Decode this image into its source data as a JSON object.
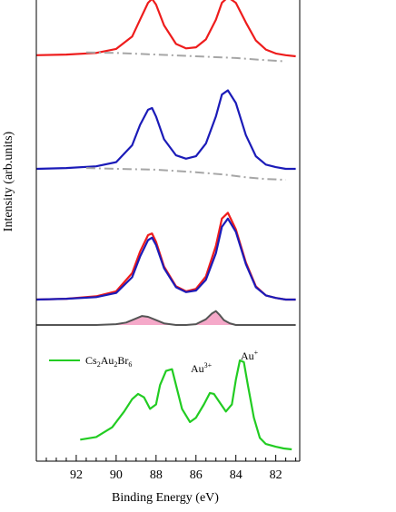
{
  "chart_data": {
    "type": "line",
    "xlabel": "Binding Energy (eV)",
    "ylabel": "Intensity (arb.units)",
    "xlim": [
      94,
      80.8
    ],
    "x_reversed": true,
    "x_ticks": [
      "92",
      "90",
      "88",
      "86",
      "84",
      "82"
    ],
    "grid": false,
    "legend": [
      {
        "label": "Cs",
        "sub": "2",
        "label2": "Au",
        "sub2": "2",
        "label3": "Br",
        "sub3": "6",
        "color": "#22cc22",
        "position": "upper-left of bottom panel"
      }
    ],
    "annotations": [
      {
        "text": "Au",
        "sup": "3+",
        "x": 85.2
      },
      {
        "text": "Au",
        "sup": "+",
        "x": 83.2
      }
    ],
    "colors": {
      "red": "#ee1c1c",
      "blue": "#1b1bb8",
      "gray_dash": "#a6a6a6",
      "diff": "#555555",
      "diff_fill": "#f5a9c9",
      "green": "#22cc22"
    },
    "series": [
      {
        "panel": "top",
        "color": "#ee1c1c",
        "x": [
          94,
          92.5,
          91,
          90,
          89.2,
          88.8,
          88.4,
          88.2,
          88.0,
          87.6,
          87.0,
          86.5,
          86.0,
          85.5,
          85.0,
          84.7,
          84.4,
          84.0,
          83.5,
          83.0,
          82.5,
          82.0,
          81.5,
          81.0
        ],
        "y": [
          0.02,
          0.03,
          0.06,
          0.13,
          0.35,
          0.65,
          0.95,
          1.02,
          0.92,
          0.55,
          0.22,
          0.14,
          0.16,
          0.3,
          0.65,
          0.95,
          1.05,
          0.95,
          0.6,
          0.28,
          0.12,
          0.05,
          0.02,
          0.0
        ]
      },
      {
        "panel": "top",
        "style": "dash-dot",
        "color": "#a6a6a6",
        "x": [
          91.5,
          90,
          88,
          86,
          84,
          82.5,
          81.5
        ],
        "y": [
          0.07,
          0.06,
          0.03,
          0.0,
          -0.03,
          -0.07,
          -0.09
        ]
      },
      {
        "panel": "middle",
        "color": "#1b1bb8",
        "x": [
          94,
          92.5,
          91,
          90,
          89.2,
          88.8,
          88.4,
          88.2,
          88.0,
          87.6,
          87.0,
          86.5,
          86.0,
          85.5,
          85.0,
          84.7,
          84.4,
          84.0,
          83.5,
          83.0,
          82.5,
          82.0,
          81.5,
          81.0
        ],
        "y": [
          0.0,
          0.01,
          0.03,
          0.08,
          0.28,
          0.52,
          0.7,
          0.72,
          0.62,
          0.35,
          0.16,
          0.12,
          0.15,
          0.3,
          0.62,
          0.88,
          0.93,
          0.78,
          0.4,
          0.15,
          0.05,
          0.02,
          0.0,
          0.0
        ]
      },
      {
        "panel": "middle",
        "style": "dash-dot",
        "color": "#a6a6a6",
        "x": [
          91.5,
          90,
          88,
          86,
          84.5,
          83.5,
          82.5,
          81.5
        ],
        "y": [
          0.01,
          0.0,
          -0.01,
          -0.04,
          -0.07,
          -0.1,
          -0.12,
          -0.13
        ]
      },
      {
        "panel": "lower",
        "name": "red",
        "color": "#ee1c1c",
        "x": [
          94,
          92.5,
          91,
          90,
          89.2,
          88.8,
          88.4,
          88.2,
          88.0,
          87.6,
          87.0,
          86.5,
          86.0,
          85.5,
          85.0,
          84.7,
          84.4,
          84.0,
          83.5,
          83.0,
          82.5,
          82.0,
          81.5,
          81.0
        ],
        "y": [
          0.0,
          0.01,
          0.04,
          0.1,
          0.32,
          0.58,
          0.78,
          0.8,
          0.7,
          0.4,
          0.16,
          0.1,
          0.13,
          0.28,
          0.65,
          0.98,
          1.05,
          0.85,
          0.45,
          0.16,
          0.05,
          0.02,
          0.0,
          0.0
        ]
      },
      {
        "panel": "lower",
        "name": "blue",
        "color": "#1b1bb8",
        "x": [
          94,
          92.5,
          91,
          90,
          89.2,
          88.8,
          88.4,
          88.2,
          88.0,
          87.6,
          87.0,
          86.5,
          86.0,
          85.5,
          85.0,
          84.7,
          84.4,
          84.0,
          83.5,
          83.0,
          82.5,
          82.0,
          81.5,
          81.0
        ],
        "y": [
          0.0,
          0.01,
          0.03,
          0.08,
          0.27,
          0.52,
          0.72,
          0.75,
          0.66,
          0.38,
          0.15,
          0.09,
          0.11,
          0.24,
          0.56,
          0.88,
          0.98,
          0.82,
          0.43,
          0.15,
          0.05,
          0.02,
          0.0,
          0.0
        ]
      },
      {
        "panel": "difference",
        "color": "#555555",
        "x": [
          94,
          91,
          90,
          89.5,
          89.0,
          88.7,
          88.4,
          88.0,
          87.6,
          87.0,
          86.5,
          86.0,
          85.5,
          85.2,
          85.0,
          84.8,
          84.6,
          84.3,
          84.0,
          83.5,
          83.0,
          82,
          81
        ],
        "y": [
          0.0,
          0.0,
          0.01,
          0.03,
          0.08,
          0.11,
          0.1,
          0.06,
          0.02,
          0.0,
          0.0,
          0.01,
          0.07,
          0.14,
          0.17,
          0.12,
          0.06,
          0.02,
          0.0,
          0.0,
          0.0,
          0.0,
          0.0
        ]
      },
      {
        "panel": "bottom",
        "name": "Cs2Au2Br6",
        "color": "#22cc22",
        "x": [
          91.8,
          91.0,
          90.2,
          89.6,
          89.2,
          88.9,
          88.6,
          88.3,
          88.0,
          87.8,
          87.5,
          87.2,
          87.0,
          86.7,
          86.3,
          86.0,
          85.6,
          85.3,
          85.1,
          84.8,
          84.5,
          84.2,
          84.0,
          83.8,
          83.6,
          83.4,
          83.1,
          82.8,
          82.5,
          82.0,
          81.6,
          81.2
        ],
        "y": [
          0.1,
          0.13,
          0.24,
          0.42,
          0.56,
          0.62,
          0.58,
          0.45,
          0.5,
          0.72,
          0.88,
          0.9,
          0.72,
          0.45,
          0.3,
          0.35,
          0.5,
          0.63,
          0.62,
          0.52,
          0.42,
          0.5,
          0.78,
          1.0,
          0.98,
          0.72,
          0.35,
          0.12,
          0.05,
          0.02,
          0.0,
          -0.01
        ]
      }
    ]
  }
}
